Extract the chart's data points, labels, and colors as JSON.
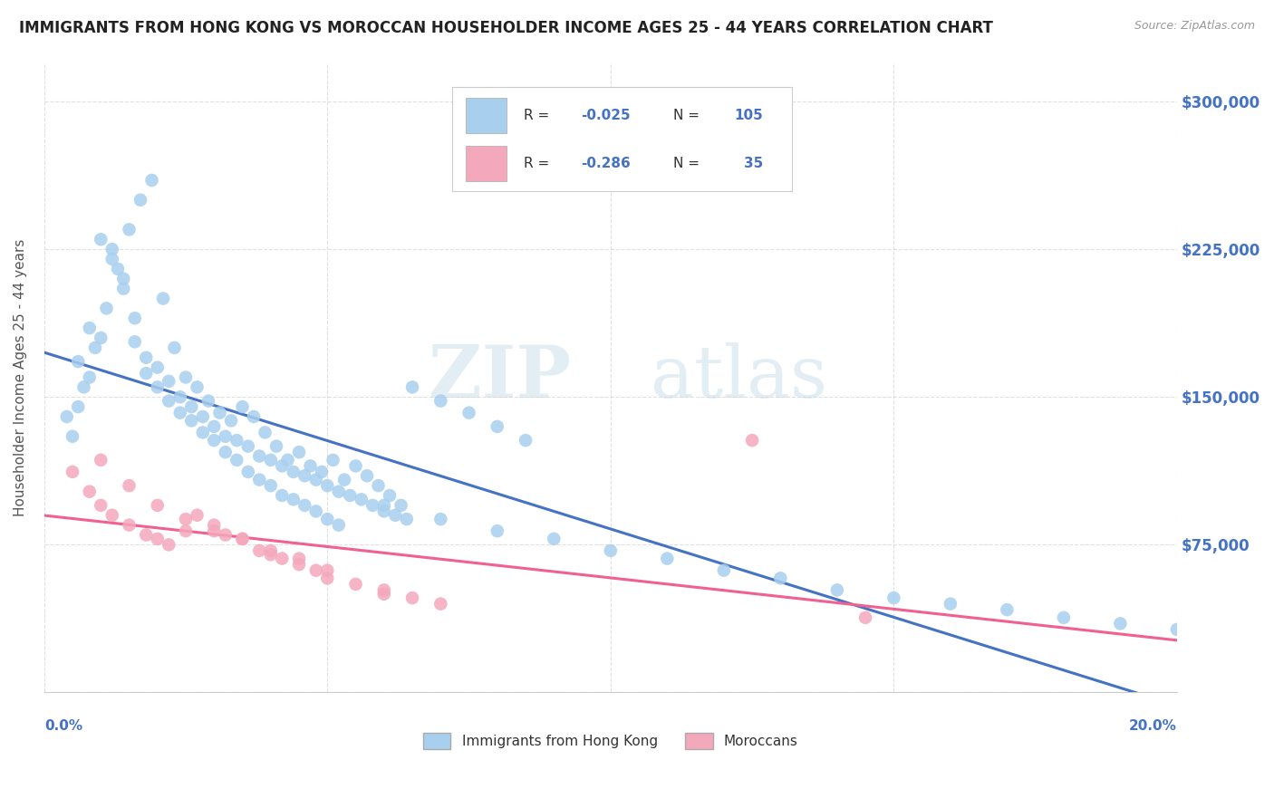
{
  "title": "IMMIGRANTS FROM HONG KONG VS MOROCCAN HOUSEHOLDER INCOME AGES 25 - 44 YEARS CORRELATION CHART",
  "source": "Source: ZipAtlas.com",
  "ylabel": "Householder Income Ages 25 - 44 years",
  "y_ticks": [
    0,
    75000,
    150000,
    225000,
    300000
  ],
  "y_tick_labels": [
    "",
    "$75,000",
    "$150,000",
    "$225,000",
    "$300,000"
  ],
  "x_min": 0.0,
  "x_max": 0.2,
  "y_min": 0,
  "y_max": 320000,
  "legend_label1": "Immigrants from Hong Kong",
  "legend_label2": "Moroccans",
  "R1": "-0.025",
  "N1": "105",
  "R2": "-0.286",
  "N2": "35",
  "color_hk": "#A8CFEE",
  "color_mor": "#F4A8BC",
  "line_color_hk": "#4472C4",
  "line_color_mor": "#F06090",
  "watermark_zip": "ZIP",
  "watermark_atlas": "atlas",
  "background_color": "#FFFFFF",
  "grid_color": "#CCCCCC",
  "title_color": "#222222",
  "axis_label_color": "#4472C4",
  "hk_points_x": [
    0.005,
    0.007,
    0.009,
    0.011,
    0.013,
    0.015,
    0.017,
    0.019,
    0.021,
    0.023,
    0.025,
    0.027,
    0.029,
    0.031,
    0.033,
    0.035,
    0.037,
    0.039,
    0.041,
    0.043,
    0.045,
    0.047,
    0.049,
    0.051,
    0.053,
    0.055,
    0.057,
    0.059,
    0.061,
    0.063,
    0.006,
    0.008,
    0.01,
    0.012,
    0.014,
    0.016,
    0.018,
    0.02,
    0.022,
    0.024,
    0.026,
    0.028,
    0.03,
    0.032,
    0.034,
    0.036,
    0.038,
    0.04,
    0.042,
    0.044,
    0.046,
    0.048,
    0.05,
    0.052,
    0.054,
    0.056,
    0.058,
    0.06,
    0.062,
    0.064,
    0.004,
    0.006,
    0.008,
    0.01,
    0.012,
    0.014,
    0.016,
    0.018,
    0.02,
    0.022,
    0.024,
    0.026,
    0.028,
    0.03,
    0.032,
    0.034,
    0.036,
    0.038,
    0.04,
    0.042,
    0.044,
    0.046,
    0.048,
    0.05,
    0.052,
    0.06,
    0.07,
    0.08,
    0.09,
    0.1,
    0.11,
    0.12,
    0.13,
    0.14,
    0.15,
    0.16,
    0.17,
    0.18,
    0.19,
    0.2,
    0.065,
    0.07,
    0.075,
    0.08,
    0.085
  ],
  "hk_points_y": [
    130000,
    155000,
    175000,
    195000,
    215000,
    235000,
    250000,
    260000,
    200000,
    175000,
    160000,
    155000,
    148000,
    142000,
    138000,
    145000,
    140000,
    132000,
    125000,
    118000,
    122000,
    115000,
    112000,
    118000,
    108000,
    115000,
    110000,
    105000,
    100000,
    95000,
    145000,
    160000,
    180000,
    220000,
    210000,
    190000,
    170000,
    165000,
    158000,
    150000,
    145000,
    140000,
    135000,
    130000,
    128000,
    125000,
    120000,
    118000,
    115000,
    112000,
    110000,
    108000,
    105000,
    102000,
    100000,
    98000,
    95000,
    92000,
    90000,
    88000,
    140000,
    168000,
    185000,
    230000,
    225000,
    205000,
    178000,
    162000,
    155000,
    148000,
    142000,
    138000,
    132000,
    128000,
    122000,
    118000,
    112000,
    108000,
    105000,
    100000,
    98000,
    95000,
    92000,
    88000,
    85000,
    95000,
    88000,
    82000,
    78000,
    72000,
    68000,
    62000,
    58000,
    52000,
    48000,
    45000,
    42000,
    38000,
    35000,
    32000,
    155000,
    148000,
    142000,
    135000,
    128000
  ],
  "mor_points_x": [
    0.005,
    0.008,
    0.01,
    0.012,
    0.015,
    0.018,
    0.02,
    0.022,
    0.025,
    0.027,
    0.03,
    0.032,
    0.035,
    0.038,
    0.04,
    0.042,
    0.045,
    0.048,
    0.05,
    0.055,
    0.06,
    0.065,
    0.07,
    0.01,
    0.015,
    0.02,
    0.025,
    0.03,
    0.035,
    0.04,
    0.045,
    0.05,
    0.06,
    0.125,
    0.145
  ],
  "mor_points_y": [
    112000,
    102000,
    95000,
    90000,
    85000,
    80000,
    78000,
    75000,
    82000,
    90000,
    85000,
    80000,
    78000,
    72000,
    70000,
    68000,
    65000,
    62000,
    58000,
    55000,
    50000,
    48000,
    45000,
    118000,
    105000,
    95000,
    88000,
    82000,
    78000,
    72000,
    68000,
    62000,
    52000,
    128000,
    38000
  ]
}
